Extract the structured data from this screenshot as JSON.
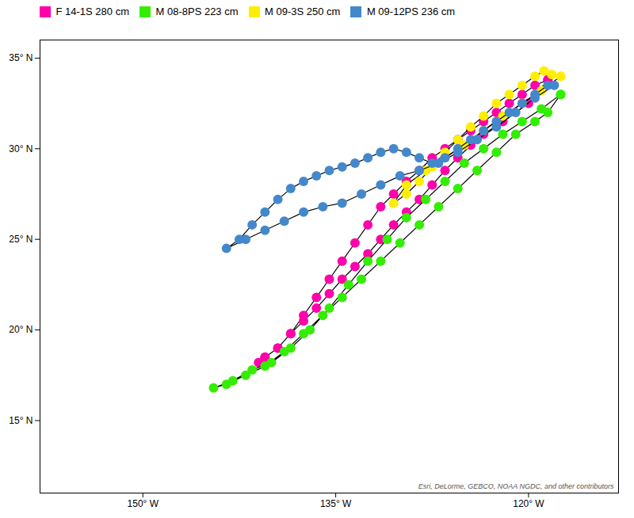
{
  "chart_data": {
    "type": "line",
    "marker": "circle",
    "line_style": "solid",
    "legend": "upper left",
    "grid": false,
    "annotation": "Esri, DeLorme, GEBCO, NOAA NGDC, and other contributors",
    "xlim": [
      -158,
      -113
    ],
    "ylim": [
      11,
      36
    ],
    "xticks": [
      {
        "value": -150,
        "label": "150° W"
      },
      {
        "value": -135,
        "label": "135° W"
      },
      {
        "value": -120,
        "label": "120° W"
      }
    ],
    "yticks": [
      {
        "value": 15,
        "label": "15° N"
      },
      {
        "value": 20,
        "label": "20° N"
      },
      {
        "value": 25,
        "label": "25° N"
      },
      {
        "value": 30,
        "label": "30° N"
      },
      {
        "value": 35,
        "label": "35° N"
      }
    ],
    "series": [
      {
        "name": "F 14-1S 280 cm",
        "color": "#ff00aa",
        "x": [
          -118.5,
          -120,
          -122,
          -123.5,
          -124.5,
          -125.5,
          -126.5,
          -127.5,
          -128.5,
          -129.5,
          -130.5,
          -131.5,
          -132.5,
          -133.5,
          -134.5,
          -135.5,
          -136.5,
          -137.5,
          -138.5,
          -139.5,
          -140.5,
          -141.0,
          -140.5,
          -139.5,
          -138.5,
          -137.5,
          -136.5,
          -135.5,
          -134.5,
          -133.5,
          -132.5,
          -131.5,
          -130.5,
          -129.5,
          -128.5,
          -127.5,
          -126.5,
          -125.5,
          -124.5,
          -123.5,
          -122.5,
          -121.5,
          -120.5,
          -119.5,
          -118.5
        ],
        "values": [
          33.8,
          32.5,
          31.5,
          30.8,
          30.2,
          29.5,
          28.8,
          28.0,
          27.2,
          26.5,
          25.8,
          25.0,
          24.2,
          23.5,
          22.8,
          22.0,
          21.2,
          20.5,
          19.8,
          19.0,
          18.5,
          18.2,
          18.5,
          19.0,
          19.8,
          20.8,
          21.8,
          22.8,
          23.8,
          24.8,
          25.8,
          26.8,
          27.5,
          28.2,
          28.8,
          29.5,
          30.0,
          30.5,
          31.0,
          31.5,
          32.0,
          32.5,
          33.0,
          33.5,
          33.8
        ]
      },
      {
        "name": "M 08-8PS 223 cm",
        "color": "#33ee00",
        "x": [
          -117.5,
          -119,
          -120.5,
          -122,
          -123.5,
          -125,
          -126.5,
          -128,
          -129.5,
          -131,
          -132.5,
          -134,
          -135.5,
          -137,
          -138.5,
          -140,
          -141.5,
          -143,
          -144.5,
          -143.5,
          -142,
          -140.5,
          -139,
          -137.5,
          -136,
          -134.5,
          -133,
          -131.5,
          -130,
          -128.5,
          -127,
          -125.5,
          -124,
          -122.5,
          -121,
          -119.5,
          -118.5,
          -117.5
        ],
        "values": [
          33.0,
          32.2,
          31.5,
          30.8,
          30.0,
          29.2,
          28.2,
          27.2,
          26.2,
          25.0,
          23.8,
          22.5,
          21.2,
          20.0,
          19.0,
          18.2,
          17.8,
          17.2,
          16.8,
          17.0,
          17.5,
          18.0,
          18.8,
          19.8,
          20.8,
          21.8,
          22.8,
          23.8,
          24.8,
          25.8,
          26.8,
          27.8,
          28.8,
          29.8,
          30.8,
          31.5,
          32.0,
          33.0
        ]
      },
      {
        "name": "M 09-3S 250 cm",
        "color": "#ffee00",
        "x": [
          -117.5,
          -119,
          -120.5,
          -122,
          -123.5,
          -125,
          -126.5,
          -128,
          -129.5,
          -130.5,
          -129.5,
          -128.5,
          -127.5,
          -126.5,
          -125.5,
          -124.5,
          -123.5,
          -122.5,
          -121.5,
          -120.5,
          -119.5,
          -118.8,
          -118.2,
          -117.5
        ],
        "values": [
          34.0,
          33.2,
          32.5,
          31.8,
          31.0,
          30.2,
          29.5,
          28.8,
          28.0,
          27.0,
          27.5,
          28.2,
          29.0,
          29.8,
          30.5,
          31.2,
          31.8,
          32.5,
          33.0,
          33.5,
          34.0,
          34.3,
          34.1,
          34.0
        ]
      },
      {
        "name": "M 09-12PS 236 cm",
        "color": "#4488cc",
        "x": [
          -118.0,
          -119.5,
          -121,
          -122.5,
          -124,
          -125.5,
          -127,
          -128.5,
          -130,
          -131.5,
          -133,
          -134.5,
          -136,
          -137.5,
          -139,
          -140.5,
          -142,
          -143.5,
          -142.5,
          -141.5,
          -140.5,
          -139.5,
          -138.5,
          -137.5,
          -136.5,
          -135.5,
          -134.5,
          -133.5,
          -132.5,
          -131.5,
          -130.5,
          -129.5,
          -128.5,
          -127.5,
          -126.5,
          -125.5,
          -124.5,
          -123.5,
          -122.5,
          -121.5,
          -120.5,
          -119.5,
          -118.5
        ],
        "values": [
          33.5,
          32.8,
          32.0,
          31.2,
          30.5,
          29.8,
          29.2,
          28.8,
          28.5,
          28.0,
          27.5,
          27.0,
          26.8,
          26.5,
          26.0,
          25.5,
          25.0,
          24.5,
          25.0,
          25.8,
          26.5,
          27.2,
          27.8,
          28.2,
          28.5,
          28.8,
          29.0,
          29.2,
          29.5,
          29.8,
          30.0,
          29.8,
          29.5,
          29.2,
          29.5,
          30.0,
          30.5,
          31.0,
          31.5,
          32.0,
          32.5,
          33.0,
          33.5
        ]
      }
    ]
  }
}
